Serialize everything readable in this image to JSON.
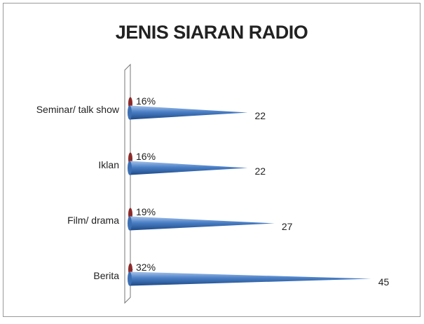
{
  "chart_data": {
    "type": "cone-bar",
    "title": "JENIS SIARAN RADIO",
    "categories": [
      "Seminar/ talk show",
      "Iklan",
      "Film/ drama",
      "Berita"
    ],
    "series": [
      {
        "color": "#8b2a2a",
        "values": [
          0.16,
          0.16,
          0.19,
          0.32
        ],
        "value_labels": [
          "16%",
          "16%",
          "19%",
          "32%"
        ]
      },
      {
        "color": "#3c6fb4",
        "values": [
          22,
          22,
          27,
          45
        ]
      }
    ],
    "xlim": [
      0,
      50
    ]
  }
}
